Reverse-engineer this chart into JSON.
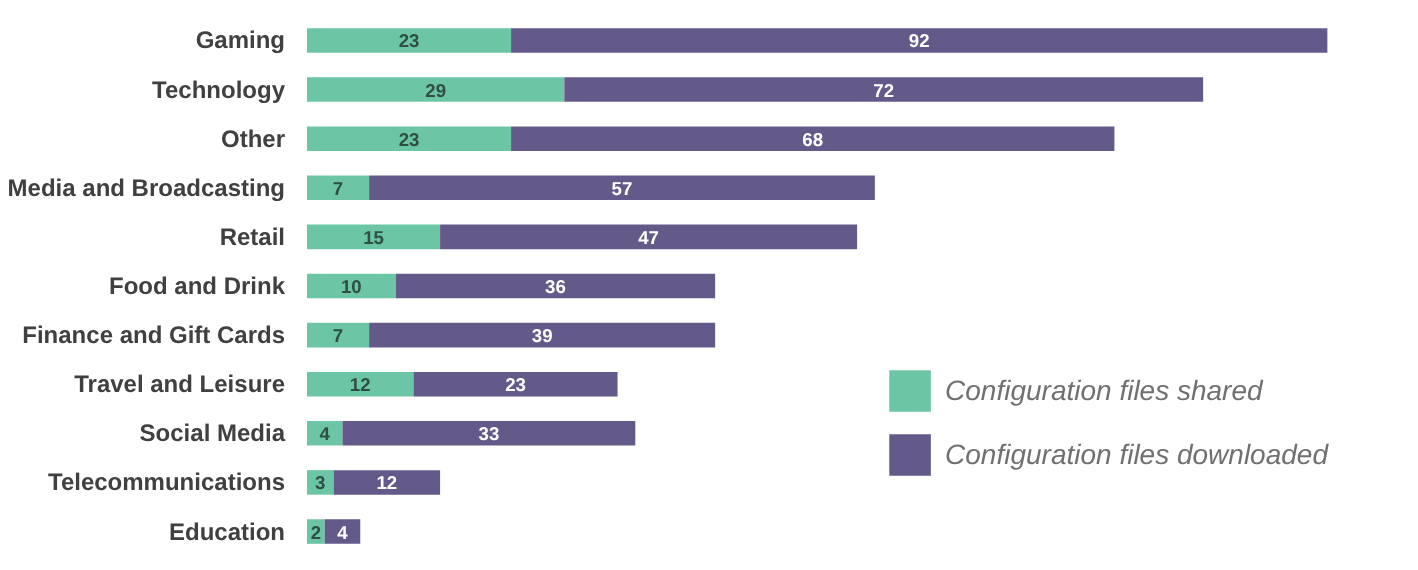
{
  "chart_data": {
    "type": "bar",
    "orientation": "horizontal",
    "stacked": true,
    "data_labels": true,
    "legend": "bottom right",
    "grid": false,
    "categories": [
      "Gaming",
      "Technology",
      "Other",
      "Media and Broadcasting",
      "Retail",
      "Food and Drink",
      "Finance and Gift Cards",
      "Travel and Leisure",
      "Social Media",
      "Telecommunications",
      "Education"
    ],
    "series": [
      {
        "name": "Configuration files shared",
        "color": "#6cc5a4",
        "values": [
          23,
          29,
          23,
          7,
          15,
          10,
          7,
          12,
          4,
          3,
          2
        ]
      },
      {
        "name": "Configuration files downloaded",
        "color": "#645a8a",
        "values": [
          92,
          72,
          68,
          57,
          47,
          36,
          39,
          23,
          33,
          12,
          4
        ]
      }
    ]
  }
}
